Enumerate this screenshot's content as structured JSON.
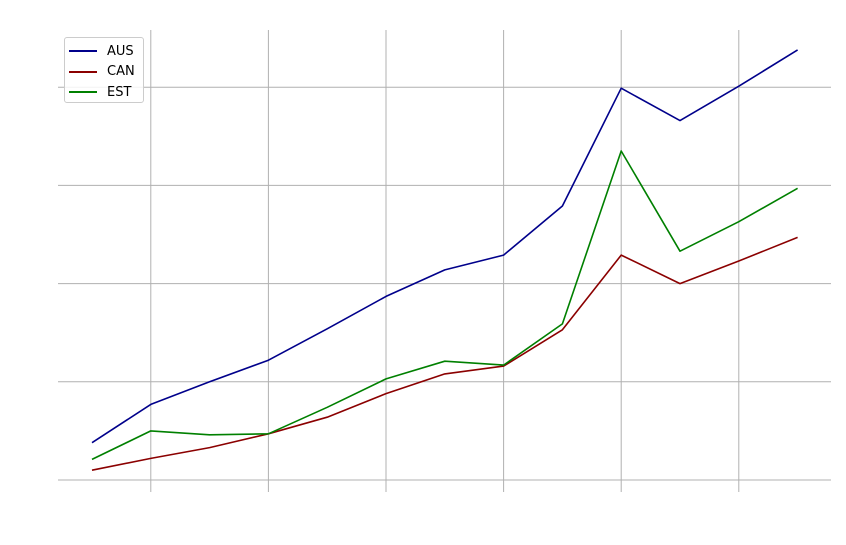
{
  "chart_data": {
    "type": "line",
    "title": "",
    "xlabel": "",
    "ylabel": "",
    "x": [
      0,
      1,
      2,
      3,
      4,
      5,
      6,
      7,
      8,
      9,
      10,
      11,
      12
    ],
    "xlim": [
      -0.6,
      12.6
    ],
    "ylim": [
      0,
      4.5
    ],
    "x_gridlines": [
      1,
      3,
      5,
      7,
      9,
      11
    ],
    "y_gridlines": [
      0,
      1,
      2,
      3,
      4
    ],
    "tick_labels_visible": false,
    "grid": true,
    "legend": "top-left",
    "series": [
      {
        "name": "AUS",
        "color": "#00008b",
        "values": [
          0.38,
          0.77,
          1.0,
          1.22,
          1.54,
          1.87,
          2.14,
          2.29,
          2.79,
          3.99,
          3.66,
          4.01,
          4.38
        ]
      },
      {
        "name": "CAN",
        "color": "#8b0000",
        "values": [
          0.1,
          0.22,
          0.33,
          0.47,
          0.64,
          0.88,
          1.08,
          1.16,
          1.53,
          2.29,
          2.0,
          2.23,
          2.47
        ]
      },
      {
        "name": "EST",
        "color": "#008000",
        "values": [
          0.21,
          0.5,
          0.46,
          0.47,
          0.74,
          1.03,
          1.21,
          1.17,
          1.59,
          3.35,
          2.33,
          2.63,
          2.97
        ]
      }
    ]
  }
}
